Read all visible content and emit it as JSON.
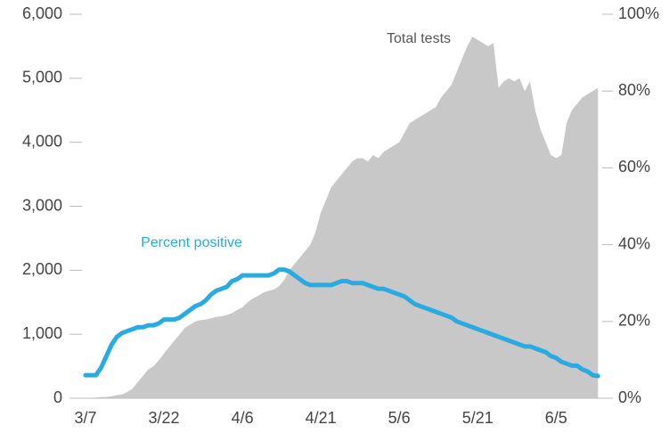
{
  "chart_data": {
    "type": "area-line",
    "categories": [
      "3/7",
      null,
      null,
      null,
      null,
      null,
      null,
      null,
      null,
      null,
      null,
      null,
      null,
      null,
      null,
      "3/22",
      null,
      null,
      null,
      null,
      null,
      null,
      null,
      null,
      null,
      null,
      null,
      null,
      null,
      null,
      "4/6",
      null,
      null,
      null,
      null,
      null,
      null,
      null,
      null,
      null,
      null,
      null,
      null,
      null,
      null,
      "4/21",
      null,
      null,
      null,
      null,
      null,
      null,
      null,
      null,
      null,
      null,
      null,
      null,
      null,
      null,
      "5/6",
      null,
      null,
      null,
      null,
      null,
      null,
      null,
      null,
      null,
      null,
      null,
      null,
      null,
      null,
      "5/21",
      null,
      null,
      null,
      null,
      null,
      null,
      null,
      null,
      null,
      null,
      null,
      null,
      null,
      null,
      "6/5",
      null,
      null,
      null,
      null,
      null,
      null,
      null,
      null
    ],
    "series": [
      {
        "name": "Total tests",
        "color": "#c8c8c8",
        "axis": "y",
        "values": [
          0,
          0,
          10,
          20,
          20,
          30,
          50,
          60,
          100,
          150,
          250,
          350,
          450,
          500,
          590,
          700,
          800,
          900,
          1000,
          1100,
          1150,
          1200,
          1220,
          1230,
          1250,
          1270,
          1280,
          1300,
          1330,
          1380,
          1420,
          1500,
          1560,
          1600,
          1650,
          1680,
          1700,
          1750,
          1850,
          2000,
          2100,
          2200,
          2300,
          2400,
          2600,
          2900,
          3100,
          3300,
          3400,
          3500,
          3600,
          3700,
          3750,
          3750,
          3700,
          3800,
          3750,
          3850,
          3900,
          3950,
          4000,
          4150,
          4300,
          4350,
          4400,
          4450,
          4500,
          4550,
          4700,
          4800,
          4900,
          5100,
          5300,
          5500,
          5650,
          5600,
          5550,
          5500,
          5550,
          4850,
          4950,
          5000,
          4950,
          5000,
          4800,
          4950,
          4500,
          4200,
          4000,
          3800,
          3750,
          3800,
          4300,
          4500,
          4600,
          4700,
          4750,
          4800,
          4850
        ]
      },
      {
        "name": "Percent positive",
        "color": "#29abe2",
        "axis": "y2",
        "values": [
          6,
          6,
          6,
          8,
          11,
          14,
          16,
          17,
          17.5,
          18,
          18.5,
          18.5,
          19,
          19,
          19.5,
          20.5,
          20.5,
          20.5,
          21,
          22,
          23,
          24,
          24.5,
          25.5,
          27,
          28,
          28.5,
          29,
          30.5,
          31,
          32,
          32,
          32,
          32,
          32,
          32,
          32.5,
          33.5,
          33.5,
          33,
          32,
          31,
          30,
          29.5,
          29.5,
          29.5,
          29.5,
          29.5,
          30,
          30.5,
          30.5,
          30,
          30,
          30,
          29.5,
          29,
          28.5,
          28.5,
          28,
          27.5,
          27,
          26.5,
          25.5,
          24.5,
          24,
          23.5,
          23,
          22.5,
          22,
          21.5,
          21,
          20,
          19.5,
          19,
          18.5,
          18,
          17.5,
          17,
          16.5,
          16,
          15.5,
          15,
          14.5,
          14,
          13.5,
          13.5,
          13,
          12.5,
          12,
          11,
          10.5,
          9.5,
          9,
          8.5,
          8.5,
          7.5,
          7,
          6,
          5.8
        ]
      }
    ],
    "ylim": [
      0,
      6000
    ],
    "yticks": [
      0,
      {
        "value": 1000,
        "label": "1,000"
      },
      {
        "value": 2000,
        "label": "2,000"
      },
      {
        "value": 3000,
        "label": "3,000"
      },
      {
        "value": 4000,
        "label": "4,000"
      },
      {
        "value": 5000,
        "label": "5,000"
      },
      {
        "value": 6000,
        "label": "6,000"
      }
    ],
    "y2lim": [
      0,
      100
    ],
    "y2ticks": [
      {
        "value": 0,
        "label": "0%"
      },
      {
        "value": 20,
        "label": "20%"
      },
      {
        "value": 40,
        "label": "40%"
      },
      {
        "value": 60,
        "label": "60%"
      },
      {
        "value": 80,
        "label": "80%"
      },
      {
        "value": 100,
        "label": "100%"
      }
    ],
    "grid": false
  }
}
